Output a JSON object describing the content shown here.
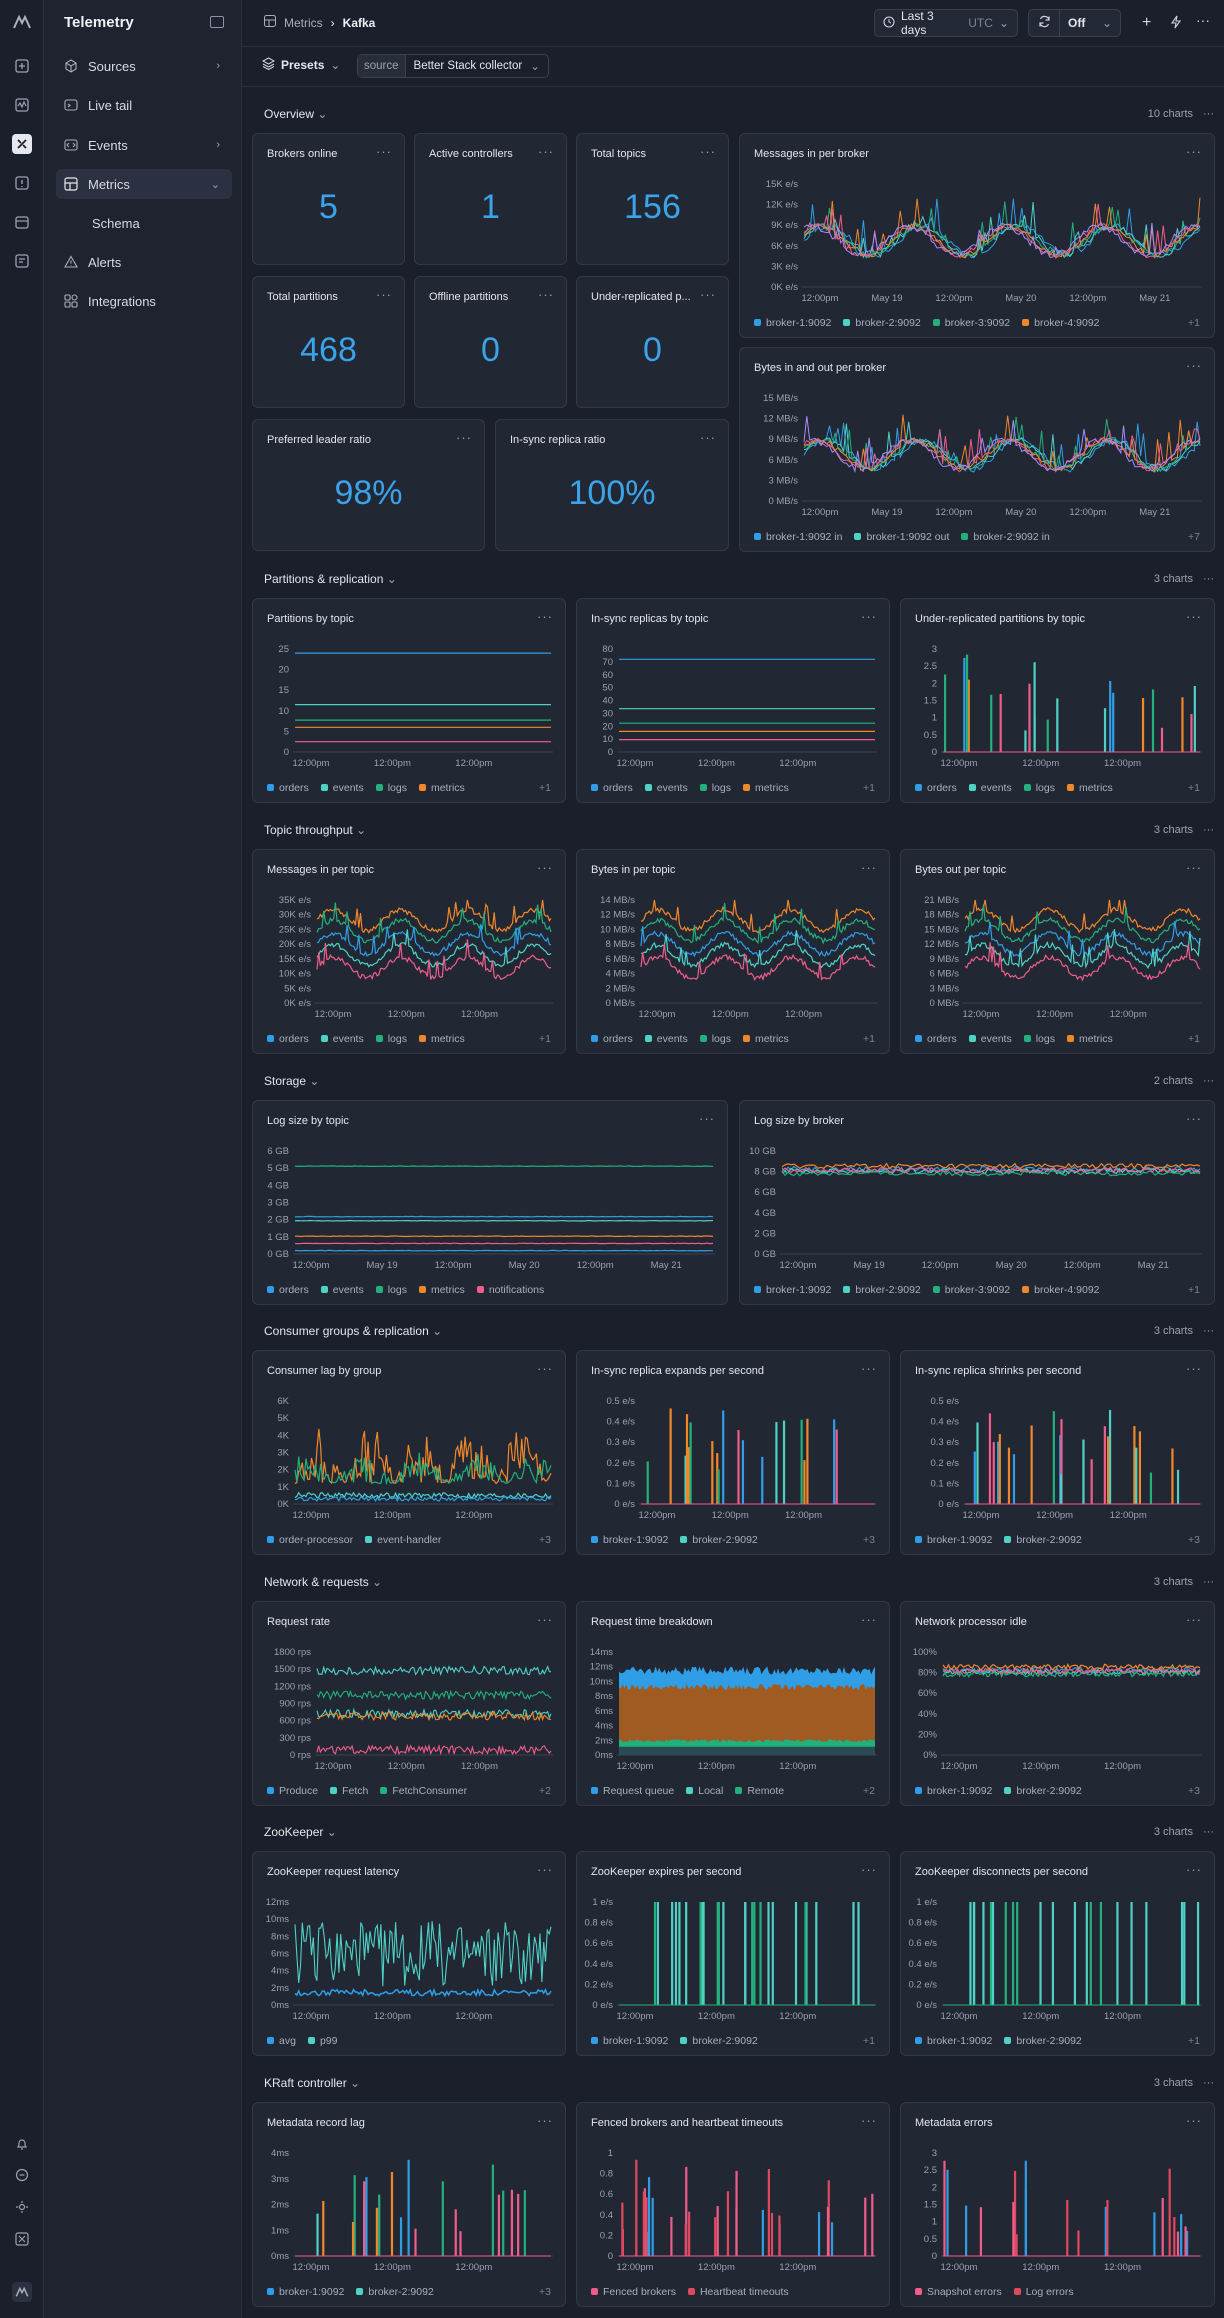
{
  "sidebar": {
    "brand": "Telemetry",
    "items": [
      {
        "label": "Sources",
        "icon": "cube-icon",
        "chevron": true
      },
      {
        "label": "Live tail",
        "icon": "terminal-icon",
        "chevron": false
      },
      {
        "label": "Events",
        "icon": "code-icon",
        "chevron": true
      },
      {
        "label": "Metrics",
        "icon": "dashboard-icon",
        "chevron": true,
        "active": true
      },
      {
        "label": "Schema",
        "icon": "",
        "chevron": false,
        "sub": true
      },
      {
        "label": "Alerts",
        "icon": "alert-icon",
        "chevron": false
      },
      {
        "label": "Integrations",
        "icon": "integrations-icon",
        "chevron": false
      }
    ]
  },
  "header": {
    "crumb_parent": "Metrics",
    "crumb_current": "Kafka",
    "timerange": "Last 3 days",
    "tz": "UTC",
    "refresh": "Off"
  },
  "presets": {
    "label": "Presets",
    "source_key": "source",
    "source_value": "Better Stack collector"
  },
  "colors": {
    "blue": "#2f9ee6",
    "teal": "#4fd1c5",
    "green": "#22b07d",
    "orange": "#f0882a",
    "pink": "#f05d8a",
    "purple": "#a78bfa",
    "red": "#e0485f"
  },
  "sections": [
    {
      "title": "Overview",
      "count": "10 charts"
    },
    {
      "title": "Partitions & replication",
      "count": "3 charts"
    },
    {
      "title": "Topic throughput",
      "count": "3 charts"
    },
    {
      "title": "Storage",
      "count": "2 charts"
    },
    {
      "title": "Consumer groups & replication",
      "count": "3 charts"
    },
    {
      "title": "Network & requests",
      "count": "3 charts"
    },
    {
      "title": "ZooKeeper",
      "count": "3 charts"
    },
    {
      "title": "KRaft controller",
      "count": "3 charts"
    }
  ],
  "stats": [
    {
      "title": "Brokers online",
      "value": "5"
    },
    {
      "title": "Active controllers",
      "value": "1"
    },
    {
      "title": "Total topics",
      "value": "156"
    },
    {
      "title": "Total partitions",
      "value": "468"
    },
    {
      "title": "Offline partitions",
      "value": "0"
    },
    {
      "title": "Under-replicated p...",
      "value": "0"
    },
    {
      "title": "Preferred leader ratio",
      "value": "98%"
    },
    {
      "title": "In-sync replica ratio",
      "value": "100%"
    }
  ],
  "charts": [
    {
      "title": "Messages in per broker",
      "yticks": [
        "15K e/s",
        "12K e/s",
        "9K e/s",
        "6K e/s",
        "3K e/s",
        "0K e/s"
      ],
      "xticks": [
        "12:00pm",
        "May 19",
        "12:00pm",
        "May 20",
        "12:00pm",
        "May 21"
      ],
      "legend": [
        "broker-1:9092",
        "broker-2:9092",
        "broker-3:9092",
        "broker-4:9092"
      ],
      "more": "+1"
    },
    {
      "title": "Bytes in and out per broker",
      "yticks": [
        "15 MB/s",
        "12 MB/s",
        "9 MB/s",
        "6 MB/s",
        "3 MB/s",
        "0 MB/s"
      ],
      "xticks": [
        "12:00pm",
        "May 19",
        "12:00pm",
        "May 20",
        "12:00pm",
        "May 21"
      ],
      "legend": [
        "broker-1:9092 in",
        "broker-1:9092 out",
        "broker-2:9092 in"
      ],
      "more": "+7"
    },
    {
      "title": "Partitions by topic",
      "yticks": [
        "25",
        "20",
        "15",
        "10",
        "5",
        "0"
      ],
      "xticks": [
        "12:00pm",
        "12:00pm",
        "12:00pm"
      ],
      "legend": [
        "orders",
        "events",
        "logs",
        "metrics"
      ],
      "more": "+1"
    },
    {
      "title": "In-sync replicas by topic",
      "yticks": [
        "80",
        "70",
        "60",
        "50",
        "40",
        "30",
        "20",
        "10",
        "0"
      ],
      "xticks": [
        "12:00pm",
        "12:00pm",
        "12:00pm"
      ],
      "legend": [
        "orders",
        "events",
        "logs",
        "metrics"
      ],
      "more": "+1"
    },
    {
      "title": "Under-replicated partitions by topic",
      "yticks": [
        "3",
        "2.5",
        "2",
        "1.5",
        "1",
        "0.5",
        "0"
      ],
      "xticks": [
        "12:00pm",
        "12:00pm",
        "12:00pm"
      ],
      "legend": [
        "orders",
        "events",
        "logs",
        "metrics"
      ],
      "more": "+1"
    },
    {
      "title": "Messages in per topic",
      "yticks": [
        "35K e/s",
        "30K e/s",
        "25K e/s",
        "20K e/s",
        "15K e/s",
        "10K e/s",
        "5K e/s",
        "0K e/s"
      ],
      "xticks": [
        "12:00pm",
        "12:00pm",
        "12:00pm"
      ],
      "legend": [
        "orders",
        "events",
        "logs",
        "metrics"
      ],
      "more": "+1"
    },
    {
      "title": "Bytes in per topic",
      "yticks": [
        "14 MB/s",
        "12 MB/s",
        "10 MB/s",
        "8 MB/s",
        "6 MB/s",
        "4 MB/s",
        "2 MB/s",
        "0 MB/s"
      ],
      "xticks": [
        "12:00pm",
        "12:00pm",
        "12:00pm"
      ],
      "legend": [
        "orders",
        "events",
        "logs",
        "metrics"
      ],
      "more": "+1"
    },
    {
      "title": "Bytes out per topic",
      "yticks": [
        "21 MB/s",
        "18 MB/s",
        "15 MB/s",
        "12 MB/s",
        "9 MB/s",
        "6 MB/s",
        "3 MB/s",
        "0 MB/s"
      ],
      "xticks": [
        "12:00pm",
        "12:00pm",
        "12:00pm"
      ],
      "legend": [
        "orders",
        "events",
        "logs",
        "metrics"
      ],
      "more": "+1"
    },
    {
      "title": "Log size by topic",
      "yticks": [
        "6 GB",
        "5 GB",
        "4 GB",
        "3 GB",
        "2 GB",
        "1 GB",
        "0 GB"
      ],
      "xticks": [
        "12:00pm",
        "May 19",
        "12:00pm",
        "May 20",
        "12:00pm",
        "May 21"
      ],
      "legend": [
        "orders",
        "events",
        "logs",
        "metrics",
        "notifications"
      ],
      "more": ""
    },
    {
      "title": "Log size by broker",
      "yticks": [
        "10 GB",
        "8 GB",
        "6 GB",
        "4 GB",
        "2 GB",
        "0 GB"
      ],
      "xticks": [
        "12:00pm",
        "May 19",
        "12:00pm",
        "May 20",
        "12:00pm",
        "May 21"
      ],
      "legend": [
        "broker-1:9092",
        "broker-2:9092",
        "broker-3:9092",
        "broker-4:9092"
      ],
      "more": "+1"
    },
    {
      "title": "Consumer lag by group",
      "yticks": [
        "6K",
        "5K",
        "4K",
        "3K",
        "2K",
        "1K",
        "0K"
      ],
      "xticks": [
        "12:00pm",
        "12:00pm",
        "12:00pm"
      ],
      "legend": [
        "order-processor",
        "event-handler"
      ],
      "more": "+3"
    },
    {
      "title": "In-sync replica expands per second",
      "yticks": [
        "0.5 e/s",
        "0.4 e/s",
        "0.3 e/s",
        "0.2 e/s",
        "0.1 e/s",
        "0 e/s"
      ],
      "xticks": [
        "12:00pm",
        "12:00pm",
        "12:00pm"
      ],
      "legend": [
        "broker-1:9092",
        "broker-2:9092"
      ],
      "more": "+3"
    },
    {
      "title": "In-sync replica shrinks per second",
      "yticks": [
        "0.5 e/s",
        "0.4 e/s",
        "0.3 e/s",
        "0.2 e/s",
        "0.1 e/s",
        "0 e/s"
      ],
      "xticks": [
        "12:00pm",
        "12:00pm",
        "12:00pm"
      ],
      "legend": [
        "broker-1:9092",
        "broker-2:9092"
      ],
      "more": "+3"
    },
    {
      "title": "Request rate",
      "yticks": [
        "1800 rps",
        "1500 rps",
        "1200 rps",
        "900 rps",
        "600 rps",
        "300 rps",
        "0 rps"
      ],
      "xticks": [
        "12:00pm",
        "12:00pm",
        "12:00pm"
      ],
      "legend": [
        "Produce",
        "Fetch",
        "FetchConsumer"
      ],
      "more": "+2"
    },
    {
      "title": "Request time breakdown",
      "yticks": [
        "14ms",
        "12ms",
        "10ms",
        "8ms",
        "6ms",
        "4ms",
        "2ms",
        "0ms"
      ],
      "xticks": [
        "12:00pm",
        "12:00pm",
        "12:00pm"
      ],
      "legend": [
        "Request queue",
        "Local",
        "Remote"
      ],
      "more": "+2"
    },
    {
      "title": "Network processor idle",
      "yticks": [
        "100%",
        "80%",
        "60%",
        "40%",
        "20%",
        "0%"
      ],
      "xticks": [
        "12:00pm",
        "12:00pm",
        "12:00pm"
      ],
      "legend": [
        "broker-1:9092",
        "broker-2:9092"
      ],
      "more": "+3"
    },
    {
      "title": "ZooKeeper request latency",
      "yticks": [
        "12ms",
        "10ms",
        "8ms",
        "6ms",
        "4ms",
        "2ms",
        "0ms"
      ],
      "xticks": [
        "12:00pm",
        "12:00pm",
        "12:00pm"
      ],
      "legend": [
        "avg",
        "p99"
      ],
      "more": ""
    },
    {
      "title": "ZooKeeper expires per second",
      "yticks": [
        "1 e/s",
        "0.8 e/s",
        "0.6 e/s",
        "0.4 e/s",
        "0.2 e/s",
        "0 e/s"
      ],
      "xticks": [
        "12:00pm",
        "12:00pm",
        "12:00pm"
      ],
      "legend": [
        "broker-1:9092",
        "broker-2:9092"
      ],
      "more": "+1"
    },
    {
      "title": "ZooKeeper disconnects per second",
      "yticks": [
        "1 e/s",
        "0.8 e/s",
        "0.6 e/s",
        "0.4 e/s",
        "0.2 e/s",
        "0 e/s"
      ],
      "xticks": [
        "12:00pm",
        "12:00pm",
        "12:00pm"
      ],
      "legend": [
        "broker-1:9092",
        "broker-2:9092"
      ],
      "more": "+1"
    },
    {
      "title": "Metadata record lag",
      "yticks": [
        "4ms",
        "3ms",
        "2ms",
        "1ms",
        "0ms"
      ],
      "xticks": [
        "12:00pm",
        "12:00pm",
        "12:00pm"
      ],
      "legend": [
        "broker-1:9092",
        "broker-2:9092"
      ],
      "more": "+3"
    },
    {
      "title": "Fenced brokers and heartbeat timeouts",
      "yticks": [
        "1",
        "0.8",
        "0.6",
        "0.4",
        "0.2",
        "0"
      ],
      "xticks": [
        "12:00pm",
        "12:00pm",
        "12:00pm"
      ],
      "legend": [
        "Fenced brokers",
        "Heartbeat timeouts"
      ],
      "more": ""
    },
    {
      "title": "Metadata errors",
      "yticks": [
        "3",
        "2.5",
        "2",
        "1.5",
        "1",
        "0.5",
        "0"
      ],
      "xticks": [
        "12:00pm",
        "12:00pm",
        "12:00pm"
      ],
      "legend": [
        "Snapshot errors",
        "Log errors"
      ],
      "more": ""
    }
  ]
}
